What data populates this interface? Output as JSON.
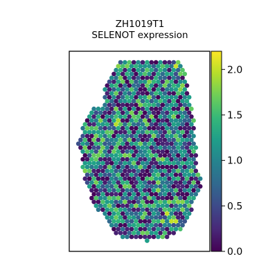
{
  "chart_data": {
    "type": "heatmap",
    "title": "ZH1019T1",
    "subtitle": "SELENOT expression",
    "colormap": "viridis",
    "colorbar": {
      "range": [
        0.0,
        2.2
      ],
      "ticks": [
        0.0,
        0.5,
        1.0,
        1.5,
        2.0
      ],
      "tick_labels": [
        "0.0",
        "0.5",
        "1.0",
        "1.5",
        "2.0"
      ]
    },
    "axes_ticks_visible": false,
    "grid": false,
    "legend": "colorbar-right",
    "spot_value_range": [
      0.0,
      2.2
    ],
    "spot_count_approx": 700
  },
  "colors": {
    "background": "#ffffff",
    "axes_edge": "#000000",
    "viridis_stops": [
      "#440154",
      "#482878",
      "#3e4989",
      "#31688e",
      "#26828e",
      "#1f9e89",
      "#35b779",
      "#6ece58",
      "#b5de2b",
      "#fde725"
    ]
  }
}
